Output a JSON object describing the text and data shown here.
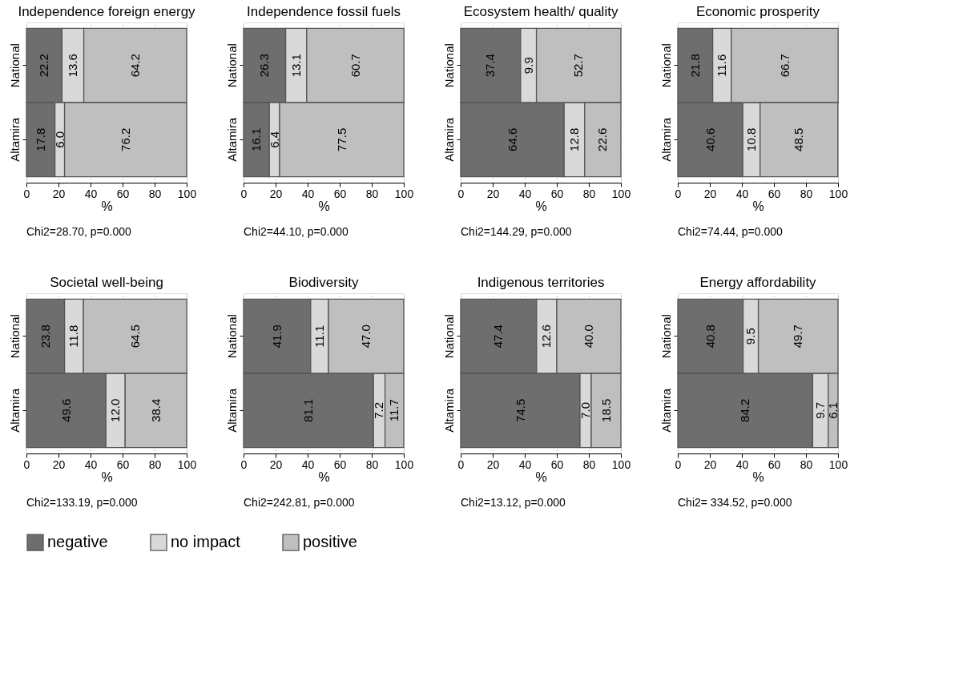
{
  "chart_data": [
    {
      "type": "bar",
      "orientation": "horizontal",
      "stacked": true,
      "title": "Independence foreign energy",
      "xlabel": "%",
      "categories": [
        "National",
        "Altamira"
      ],
      "xlim": [
        0,
        100
      ],
      "xticks": [
        0,
        20,
        40,
        60,
        80,
        100
      ],
      "grid": "x",
      "legend": "bottom",
      "annotations": [
        "Chi2=28.70, p=0.000"
      ],
      "series": [
        {
          "name": "negative",
          "color": "#6e6e6e",
          "values": [
            22.2,
            17.8
          ],
          "value_labels": [
            "22.2",
            "17.8"
          ]
        },
        {
          "name": "no impact",
          "color": "#d9d9d9",
          "values": [
            13.6,
            6.0
          ],
          "value_labels": [
            "13.6",
            "6.0"
          ]
        },
        {
          "name": "positive",
          "color": "#bfbfbf",
          "values": [
            64.2,
            76.2
          ],
          "value_labels": [
            "64.2",
            "76.2"
          ]
        }
      ]
    },
    {
      "type": "bar",
      "orientation": "horizontal",
      "stacked": true,
      "title": "Independence fossil fuels",
      "xlabel": "%",
      "categories": [
        "National",
        "Altamira"
      ],
      "xlim": [
        0,
        100
      ],
      "xticks": [
        0,
        20,
        40,
        60,
        80,
        100
      ],
      "grid": "x",
      "legend": "bottom",
      "annotations": [
        "Chi2=44.10, p=0.000"
      ],
      "series": [
        {
          "name": "negative",
          "color": "#6e6e6e",
          "values": [
            26.3,
            16.1
          ],
          "value_labels": [
            "26.3",
            "16.1"
          ]
        },
        {
          "name": "no impact",
          "color": "#d9d9d9",
          "values": [
            13.1,
            6.4
          ],
          "value_labels": [
            "13.1",
            "6.4"
          ]
        },
        {
          "name": "positive",
          "color": "#bfbfbf",
          "values": [
            60.7,
            77.5
          ],
          "value_labels": [
            "60.7",
            "77.5"
          ]
        }
      ]
    },
    {
      "type": "bar",
      "orientation": "horizontal",
      "stacked": true,
      "title": "Ecosystem health/ quality",
      "xlabel": "%",
      "categories": [
        "National",
        "Altamira"
      ],
      "xlim": [
        0,
        100
      ],
      "xticks": [
        0,
        20,
        40,
        60,
        80,
        100
      ],
      "grid": "x",
      "legend": "bottom",
      "annotations": [
        "Chi2=144.29, p=0.000"
      ],
      "series": [
        {
          "name": "negative",
          "color": "#6e6e6e",
          "values": [
            37.4,
            64.6
          ],
          "value_labels": [
            "37.4",
            "64.6"
          ]
        },
        {
          "name": "no impact",
          "color": "#d9d9d9",
          "values": [
            9.9,
            12.8
          ],
          "value_labels": [
            "9.9",
            "12.8"
          ]
        },
        {
          "name": "positive",
          "color": "#bfbfbf",
          "values": [
            52.7,
            22.6
          ],
          "value_labels": [
            "52.7",
            "22.6"
          ]
        }
      ]
    },
    {
      "type": "bar",
      "orientation": "horizontal",
      "stacked": true,
      "title": "Economic prosperity",
      "xlabel": "%",
      "categories": [
        "National",
        "Altamira"
      ],
      "xlim": [
        0,
        100
      ],
      "xticks": [
        0,
        20,
        40,
        60,
        80,
        100
      ],
      "grid": "x",
      "legend": "bottom",
      "annotations": [
        "Chi2=74.44, p=0.000"
      ],
      "series": [
        {
          "name": "negative",
          "color": "#6e6e6e",
          "values": [
            21.8,
            40.6
          ],
          "value_labels": [
            "21.8",
            "40.6"
          ]
        },
        {
          "name": "no impact",
          "color": "#d9d9d9",
          "values": [
            11.6,
            10.8
          ],
          "value_labels": [
            "11.6",
            "10.8"
          ]
        },
        {
          "name": "positive",
          "color": "#bfbfbf",
          "values": [
            66.7,
            48.5
          ],
          "value_labels": [
            "66.7",
            "48.5"
          ]
        }
      ]
    },
    {
      "type": "bar",
      "orientation": "horizontal",
      "stacked": true,
      "title": "Societal well-being",
      "xlabel": "%",
      "categories": [
        "National",
        "Altamira"
      ],
      "xlim": [
        0,
        100
      ],
      "xticks": [
        0,
        20,
        40,
        60,
        80,
        100
      ],
      "grid": "x",
      "legend": "bottom",
      "annotations": [
        "Chi2=133.19, p=0.000"
      ],
      "series": [
        {
          "name": "negative",
          "color": "#6e6e6e",
          "values": [
            23.8,
            49.6
          ],
          "value_labels": [
            "23.8",
            "49.6"
          ]
        },
        {
          "name": "no impact",
          "color": "#d9d9d9",
          "values": [
            11.8,
            12.0
          ],
          "value_labels": [
            "11.8",
            "12.0"
          ]
        },
        {
          "name": "positive",
          "color": "#bfbfbf",
          "values": [
            64.5,
            38.4
          ],
          "value_labels": [
            "64.5",
            "38.4"
          ]
        }
      ]
    },
    {
      "type": "bar",
      "orientation": "horizontal",
      "stacked": true,
      "title": "Biodiversity",
      "xlabel": "%",
      "categories": [
        "National",
        "Altamira"
      ],
      "xlim": [
        0,
        100
      ],
      "xticks": [
        0,
        20,
        40,
        60,
        80,
        100
      ],
      "grid": "x",
      "legend": "bottom",
      "annotations": [
        "Chi2=242.81, p=0.000"
      ],
      "series": [
        {
          "name": "negative",
          "color": "#6e6e6e",
          "values": [
            41.9,
            81.1
          ],
          "value_labels": [
            "41.9",
            "81.1"
          ]
        },
        {
          "name": "no impact",
          "color": "#d9d9d9",
          "values": [
            11.1,
            7.2
          ],
          "value_labels": [
            "11.1",
            "7.2"
          ]
        },
        {
          "name": "positive",
          "color": "#bfbfbf",
          "values": [
            47.0,
            11.7
          ],
          "value_labels": [
            "47.0",
            "11.7"
          ]
        }
      ]
    },
    {
      "type": "bar",
      "orientation": "horizontal",
      "stacked": true,
      "title": "Indigenous territories",
      "xlabel": "%",
      "categories": [
        "National",
        "Altamira"
      ],
      "xlim": [
        0,
        100
      ],
      "xticks": [
        0,
        20,
        40,
        60,
        80,
        100
      ],
      "grid": "x",
      "legend": "bottom",
      "annotations": [
        "Chi2=13.12, p=0.000"
      ],
      "series": [
        {
          "name": "negative",
          "color": "#6e6e6e",
          "values": [
            47.4,
            74.5
          ],
          "value_labels": [
            "47.4",
            "74.5"
          ]
        },
        {
          "name": "no impact",
          "color": "#d9d9d9",
          "values": [
            12.6,
            7.0
          ],
          "value_labels": [
            "12.6",
            "7.0"
          ]
        },
        {
          "name": "positive",
          "color": "#bfbfbf",
          "values": [
            40.0,
            18.5
          ],
          "value_labels": [
            "40.0",
            "18.5"
          ]
        }
      ]
    },
    {
      "type": "bar",
      "orientation": "horizontal",
      "stacked": true,
      "title": "Energy affordability",
      "xlabel": "%",
      "categories": [
        "National",
        "Altamira"
      ],
      "xlim": [
        0,
        100
      ],
      "xticks": [
        0,
        20,
        40,
        60,
        80,
        100
      ],
      "grid": "x",
      "legend": "bottom",
      "annotations": [
        "Chi2= 334.52, p=0.000"
      ],
      "series": [
        {
          "name": "negative",
          "color": "#6e6e6e",
          "values": [
            40.8,
            84.2
          ],
          "value_labels": [
            "40.8",
            "84.2"
          ]
        },
        {
          "name": "no impact",
          "color": "#d9d9d9",
          "values": [
            9.5,
            9.7
          ],
          "value_labels": [
            "9.5",
            "9.7"
          ]
        },
        {
          "name": "positive",
          "color": "#bfbfbf",
          "values": [
            49.7,
            6.1
          ],
          "value_labels": [
            "49.7",
            "6.1"
          ]
        }
      ]
    }
  ]
}
